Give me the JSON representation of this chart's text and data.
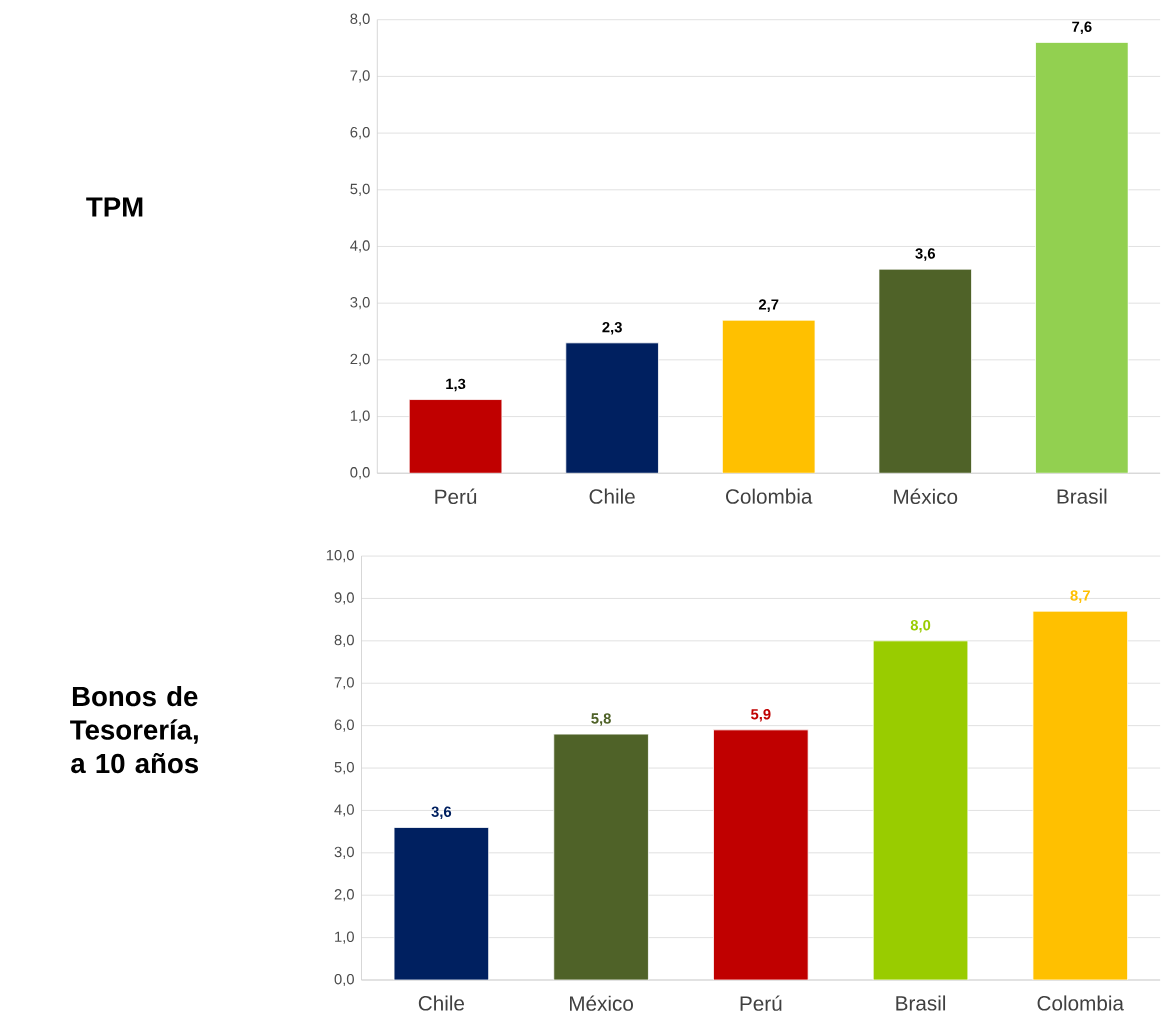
{
  "chart_data": [
    {
      "type": "bar",
      "ylabel": "TPM",
      "categories": [
        "Perú",
        "Chile",
        "Colombia",
        "México",
        "Brasil"
      ],
      "values": [
        1.3,
        2.3,
        2.7,
        3.6,
        7.6
      ],
      "colors": [
        "#c00000",
        "#002060",
        "#ffc000",
        "#4f6228",
        "#92d050"
      ],
      "value_labels": [
        "1,3",
        "2,3",
        "2,7",
        "3,6",
        "7,6"
      ],
      "ylim": [
        0,
        8
      ],
      "yticks": [
        {
          "value": 0,
          "label": "0,0"
        },
        {
          "value": 1,
          "label": "1,0"
        },
        {
          "value": 2,
          "label": "2,0"
        },
        {
          "value": 3,
          "label": "3,0"
        },
        {
          "value": 4,
          "label": "4,0"
        },
        {
          "value": 5,
          "label": "5,0"
        },
        {
          "value": 6,
          "label": "6,0"
        },
        {
          "value": 7,
          "label": "7,0"
        },
        {
          "value": 8,
          "label": "8,0"
        }
      ],
      "grid": "y"
    },
    {
      "type": "bar",
      "ylabel": "Bonos de Tesorería, a 10 años",
      "categories": [
        "Chile",
        "México",
        "Perú",
        "Brasil",
        "Colombia"
      ],
      "values": [
        3.6,
        5.8,
        5.9,
        8.0,
        8.7
      ],
      "colors": [
        "#002060",
        "#4f6228",
        "#c00000",
        "#99cc00",
        "#ffc000"
      ],
      "value_labels": [
        "3,6",
        "5,8",
        "5,9",
        "8,0",
        "8,7"
      ],
      "ylim": [
        0,
        10
      ],
      "yticks": [
        {
          "value": 0,
          "label": "0,0"
        },
        {
          "value": 1,
          "label": "1,0"
        },
        {
          "value": 2,
          "label": "2,0"
        },
        {
          "value": 3,
          "label": "3,0"
        },
        {
          "value": 4,
          "label": "4,0"
        },
        {
          "value": 5,
          "label": "5,0"
        },
        {
          "value": 6,
          "label": "6,0"
        },
        {
          "value": 7,
          "label": "7,0"
        },
        {
          "value": 8,
          "label": "8,0"
        },
        {
          "value": 9,
          "label": "9,0"
        },
        {
          "value": 10,
          "label": "10,0"
        }
      ],
      "grid": "y"
    }
  ]
}
